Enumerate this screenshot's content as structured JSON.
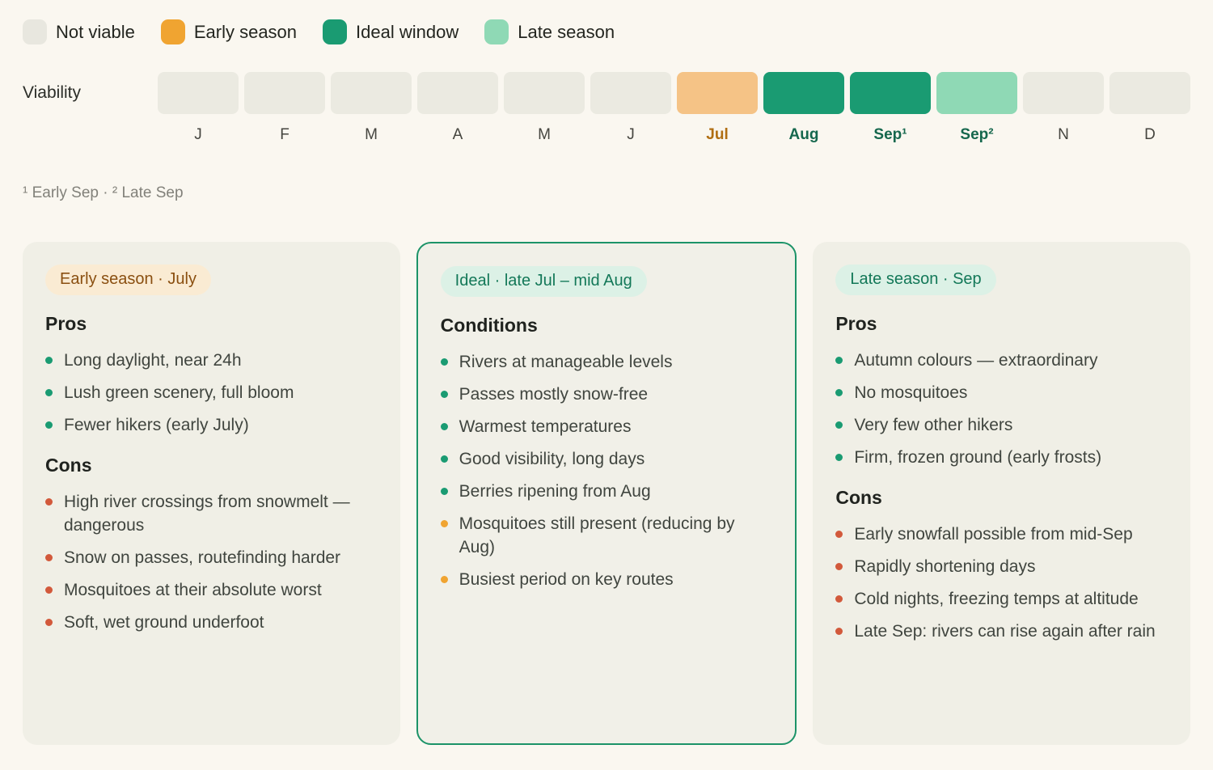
{
  "legend": {
    "items": [
      {
        "label": "Not viable",
        "status": "none"
      },
      {
        "label": "Early season",
        "status": "early"
      },
      {
        "label": "Ideal window",
        "status": "ideal"
      },
      {
        "label": "Late season",
        "status": "late"
      }
    ]
  },
  "viability": {
    "label": "Viability",
    "months": [
      {
        "label": "J",
        "status": "none"
      },
      {
        "label": "F",
        "status": "none"
      },
      {
        "label": "M",
        "status": "none"
      },
      {
        "label": "A",
        "status": "none"
      },
      {
        "label": "M",
        "status": "none"
      },
      {
        "label": "J",
        "status": "none"
      },
      {
        "label": "Jul",
        "status": "early"
      },
      {
        "label": "Aug",
        "status": "ideal"
      },
      {
        "label": "Sep¹",
        "status": "ideal"
      },
      {
        "label": "Sep²",
        "status": "late"
      },
      {
        "label": "N",
        "status": "none"
      },
      {
        "label": "D",
        "status": "none"
      }
    ]
  },
  "footnote": "¹ Early Sep  ·  ² Late Sep",
  "chart_data": {
    "type": "heatmap",
    "title": "Viability",
    "categories": [
      "J",
      "F",
      "M",
      "A",
      "M",
      "J",
      "Jul",
      "Aug",
      "Sep¹",
      "Sep²",
      "N",
      "D"
    ],
    "values": [
      "not_viable",
      "not_viable",
      "not_viable",
      "not_viable",
      "not_viable",
      "not_viable",
      "early_season",
      "ideal_window",
      "ideal_window",
      "late_season",
      "not_viable",
      "not_viable"
    ],
    "legend": [
      "Not viable",
      "Early season",
      "Ideal window",
      "Late season"
    ],
    "legend_position": "top",
    "annotations": [
      "¹ Early Sep",
      "² Late Sep"
    ]
  },
  "cards": [
    {
      "badge": "Early season · July",
      "badge_style": "early",
      "highlighted": false,
      "sections": [
        {
          "title": "Pros",
          "items": [
            {
              "text": "Long daylight, near 24h",
              "bullet": "green"
            },
            {
              "text": "Lush green scenery, full bloom",
              "bullet": "green"
            },
            {
              "text": "Fewer hikers (early July)",
              "bullet": "green"
            }
          ]
        },
        {
          "title": "Cons",
          "items": [
            {
              "text": "High river crossings from snowmelt — dangerous",
              "bullet": "red"
            },
            {
              "text": "Snow on passes, routefinding harder",
              "bullet": "red"
            },
            {
              "text": "Mosquitoes at their absolute worst",
              "bullet": "red"
            },
            {
              "text": "Soft, wet ground underfoot",
              "bullet": "red"
            }
          ]
        }
      ]
    },
    {
      "badge": "Ideal · late Jul – mid Aug",
      "badge_style": "ideal",
      "highlighted": true,
      "sections": [
        {
          "title": "Conditions",
          "items": [
            {
              "text": "Rivers at manageable levels",
              "bullet": "green"
            },
            {
              "text": "Passes mostly snow-free",
              "bullet": "green"
            },
            {
              "text": "Warmest temperatures",
              "bullet": "green"
            },
            {
              "text": "Good visibility, long days",
              "bullet": "green"
            },
            {
              "text": "Berries ripening from Aug",
              "bullet": "green"
            },
            {
              "text": "Mosquitoes still present (reducing by Aug)",
              "bullet": "orange"
            },
            {
              "text": "Busiest period on key routes",
              "bullet": "orange"
            }
          ]
        }
      ]
    },
    {
      "badge": "Late season · Sep",
      "badge_style": "ideal",
      "highlighted": false,
      "sections": [
        {
          "title": "Pros",
          "items": [
            {
              "text": "Autumn colours — extraordinary",
              "bullet": "green"
            },
            {
              "text": "No mosquitoes",
              "bullet": "green"
            },
            {
              "text": "Very few other hikers",
              "bullet": "green"
            },
            {
              "text": "Firm, frozen ground (early frosts)",
              "bullet": "green"
            }
          ]
        },
        {
          "title": "Cons",
          "items": [
            {
              "text": "Early snowfall possible from mid-Sep",
              "bullet": "red"
            },
            {
              "text": "Rapidly shortening days",
              "bullet": "red"
            },
            {
              "text": "Cold nights, freezing temps at altitude",
              "bullet": "red"
            },
            {
              "text": "Late Sep: rivers can rise again after rain",
              "bullet": "red"
            }
          ]
        }
      ]
    }
  ],
  "colors": {
    "page_bg": "#FAF7F0",
    "card_bg": "#F0EFE6",
    "not_viable_block": "#EBEAE1",
    "not_viable_swatch": "#E8E7DF",
    "early_season": "#F0A431",
    "early_season_block": "#F5C386",
    "ideal_window": "#1A9B72",
    "late_season": "#8FD9B5",
    "month_label_early": "#B06E12",
    "month_label_green": "#15674D",
    "month_label_plain": "#45453F",
    "badge_early_bg": "#FAEBD3",
    "badge_early_text": "#8A4F10",
    "badge_ideal_bg": "#DCF1E6",
    "badge_ideal_text": "#137858",
    "bullet_green": "#1A9B72",
    "bullet_red": "#D2593B",
    "bullet_orange": "#F0A431",
    "heading_text": "#20231F",
    "body_text": "#40453F",
    "footnote_text": "#82817A",
    "highlight_border": "#1C9368"
  }
}
